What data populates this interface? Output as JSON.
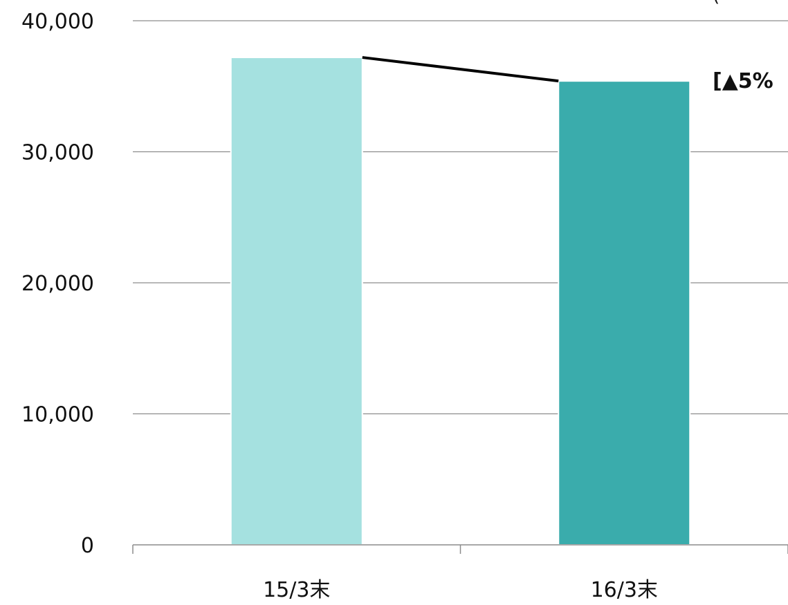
{
  "chart_data": {
    "type": "bar",
    "categories": [
      "15/3末",
      "16/3末"
    ],
    "values": [
      37200,
      35400
    ],
    "colors": [
      "#A5E1E0",
      "#3AACAC"
    ],
    "connector_line": true,
    "annotation": "[▲5%",
    "corner_text": "(",
    "ylim": [
      0,
      40000
    ],
    "yticks": [
      0,
      10000,
      20000,
      30000,
      40000
    ],
    "ytick_labels": [
      "0",
      "10,000",
      "20,000",
      "30,000",
      "40,000"
    ],
    "grid": true,
    "legend": "none",
    "title": "",
    "xlabel": "",
    "ylabel": ""
  }
}
